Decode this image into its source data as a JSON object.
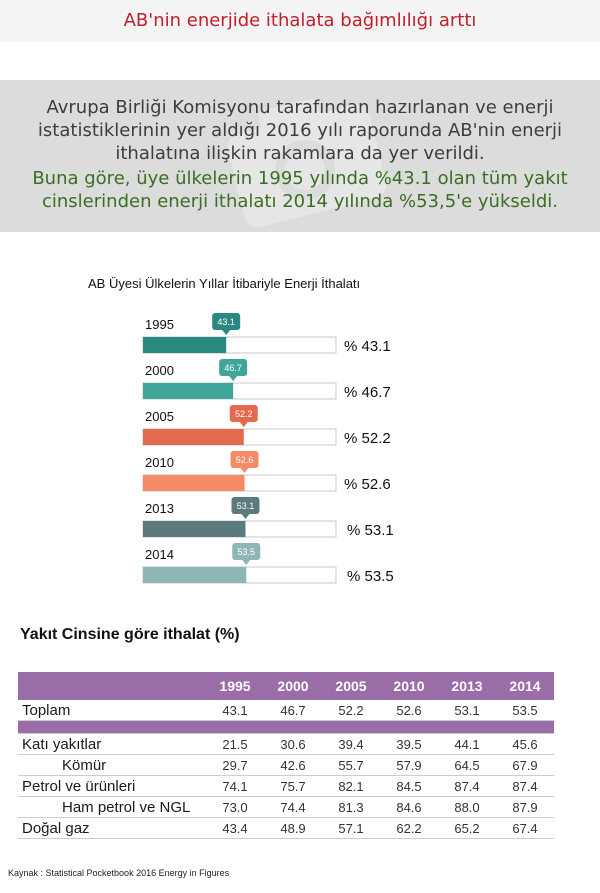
{
  "title": "AB'nin enerjide ithalata bağımlılığı arttı",
  "intro": {
    "line1": "Avrupa Birliği Komisyonu tarafından hazırlanan ve enerji istatistiklerinin yer aldığı 2016 yılı raporunda AB'nin enerji ithalatına ilişkin rakamlara da yer verildi.",
    "line2": "Buna göre, üye ülkelerin 1995 yılında %43.1 olan tüm yakıt cinslerinden enerji ithalatı 2014 yılında %53,5'e yükseldi."
  },
  "chart_data": {
    "type": "bar",
    "title": "AB Üyesi Ülkelerin Yıllar İtibariyle Enerji İthalatı",
    "categories": [
      "1995",
      "2000",
      "2005",
      "2010",
      "2013",
      "2014"
    ],
    "values": [
      43.1,
      46.7,
      52.2,
      52.6,
      53.1,
      53.5
    ],
    "bubble_labels": [
      "43.1",
      "46.7",
      "52.2",
      "52.6",
      "53.1",
      "53.5"
    ],
    "value_labels": [
      "% 43.1",
      "% 46.7",
      "% 52.2",
      "% 52.6",
      "% 53.1",
      "% 53.5"
    ],
    "colors": [
      "#2a8a82",
      "#3ea79a",
      "#e36a4e",
      "#f48a66",
      "#5a7a7e",
      "#8eb6b4"
    ],
    "xlim": [
      0,
      100
    ],
    "grid": false
  },
  "table": {
    "title": "Yakıt Cinsine göre ithalat (%)",
    "headers": [
      "",
      "1995",
      "2000",
      "2005",
      "2010",
      "2013",
      "2014"
    ],
    "rows": [
      {
        "label": "Toplam",
        "sub": false,
        "values": [
          "43.1",
          "46.7",
          "52.2",
          "52.6",
          "53.1",
          "53.5"
        ]
      },
      {
        "label": "Katı yakıtlar",
        "sub": false,
        "values": [
          "21.5",
          "30.6",
          "39.4",
          "39.5",
          "44.1",
          "45.6"
        ]
      },
      {
        "label": "Kömür",
        "sub": true,
        "values": [
          "29.7",
          "42.6",
          "55.7",
          "57.9",
          "64.5",
          "67.9"
        ]
      },
      {
        "label": "Petrol ve ürünleri",
        "sub": false,
        "values": [
          "74.1",
          "75.7",
          "82.1",
          "84.5",
          "87.4",
          "87.4"
        ]
      },
      {
        "label": "Ham petrol ve NGL",
        "sub": true,
        "values": [
          "73.0",
          "74.4",
          "81.3",
          "84.6",
          "88.0",
          "87.9"
        ]
      },
      {
        "label": "Doğal gaz",
        "sub": false,
        "values": [
          "43.4",
          "48.9",
          "57.1",
          "62.2",
          "65.2",
          "67.4"
        ]
      }
    ]
  },
  "source": "Kaynak : Statistical Pocketbook 2016 Energy in Figures"
}
